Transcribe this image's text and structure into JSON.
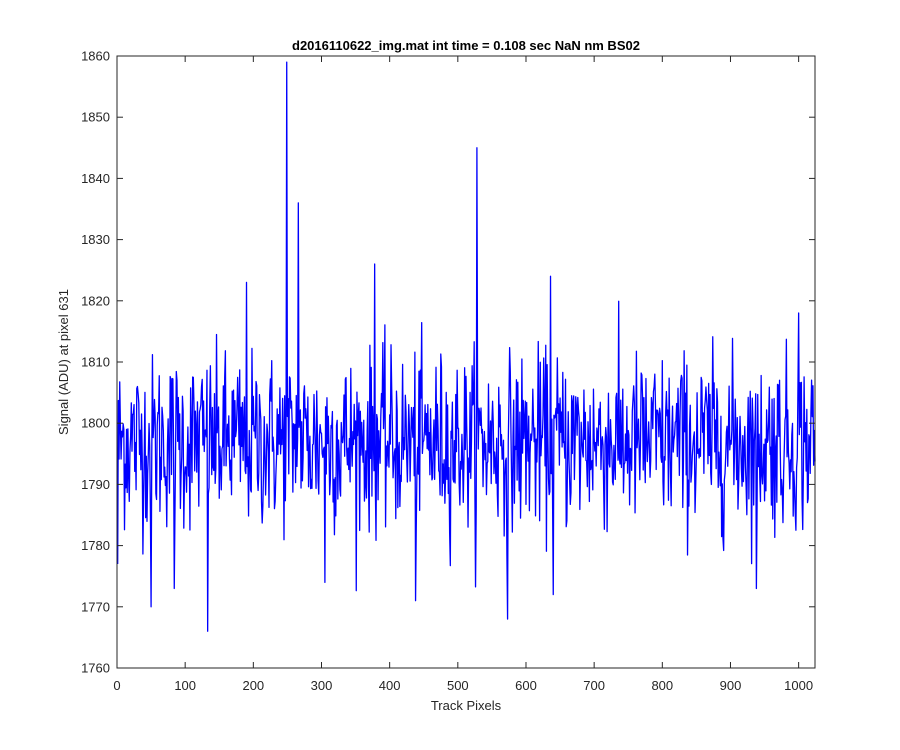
{
  "chart_data": {
    "type": "line",
    "title": "d2016110622_img.mat int time = 0.108 sec  NaN nm BS02",
    "xlabel": "Track Pixels",
    "ylabel": "Signal (ADU) at pixel 631",
    "xlim": [
      0,
      1024
    ],
    "ylim": [
      1760,
      1860
    ],
    "x_ticks": [
      0,
      100,
      200,
      300,
      400,
      500,
      600,
      700,
      800,
      900,
      1000
    ],
    "y_ticks": [
      1760,
      1770,
      1780,
      1790,
      1800,
      1810,
      1820,
      1830,
      1840,
      1850,
      1860
    ],
    "grid": false,
    "legend": "none",
    "series": [
      {
        "color": "#0000ff",
        "x_start": 1,
        "x_step": 1,
        "count": 1024,
        "mean": 1797,
        "noise_sd": 7,
        "notable_points": [
          {
            "x": 1,
            "y": 1777
          },
          {
            "x": 50,
            "y": 1770
          },
          {
            "x": 84,
            "y": 1773
          },
          {
            "x": 133,
            "y": 1766
          },
          {
            "x": 190,
            "y": 1823
          },
          {
            "x": 249,
            "y": 1859
          },
          {
            "x": 266,
            "y": 1836
          },
          {
            "x": 305,
            "y": 1774
          },
          {
            "x": 378,
            "y": 1826
          },
          {
            "x": 438,
            "y": 1771
          },
          {
            "x": 528,
            "y": 1845
          },
          {
            "x": 573,
            "y": 1768
          },
          {
            "x": 636,
            "y": 1824
          },
          {
            "x": 640,
            "y": 1772
          },
          {
            "x": 938,
            "y": 1773
          },
          {
            "x": 1000,
            "y": 1818
          }
        ]
      }
    ]
  }
}
